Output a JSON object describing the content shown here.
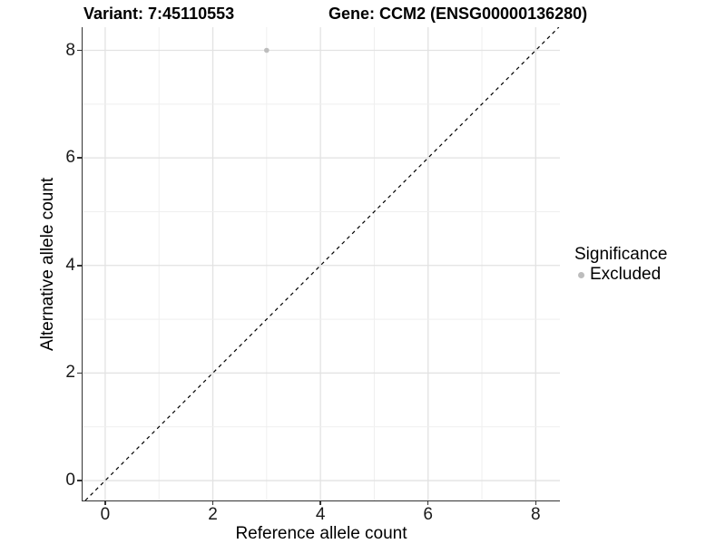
{
  "header": {
    "variant_title": "Variant: 7:45110553",
    "gene_title": "Gene: CCM2 (ENSG00000136280)"
  },
  "chart_data": {
    "type": "scatter",
    "xlabel": "Reference allele count",
    "ylabel": "Alternative allele count",
    "xlim": [
      -0.42,
      8.45
    ],
    "ylim": [
      -0.37,
      8.43
    ],
    "xticks": [
      0,
      2,
      4,
      6,
      8
    ],
    "yticks": [
      0,
      2,
      4,
      6,
      8
    ],
    "grid_interval": 1,
    "points": [
      {
        "x": 3,
        "y": 8,
        "significance": "Excluded"
      }
    ],
    "identity_line": {
      "slope": 1,
      "intercept": 0,
      "style": "dashed",
      "color": "#000000"
    },
    "legend": {
      "title": "Significance",
      "position": "right",
      "items": [
        {
          "label": "Excluded",
          "color": "#bdbdbd"
        }
      ]
    },
    "colors": {
      "point": "#bdbdbd",
      "grid_major": "#e2e2e2",
      "grid_minor": "#efefef",
      "axis_line": "#333333",
      "dashed_line": "#000000"
    }
  }
}
